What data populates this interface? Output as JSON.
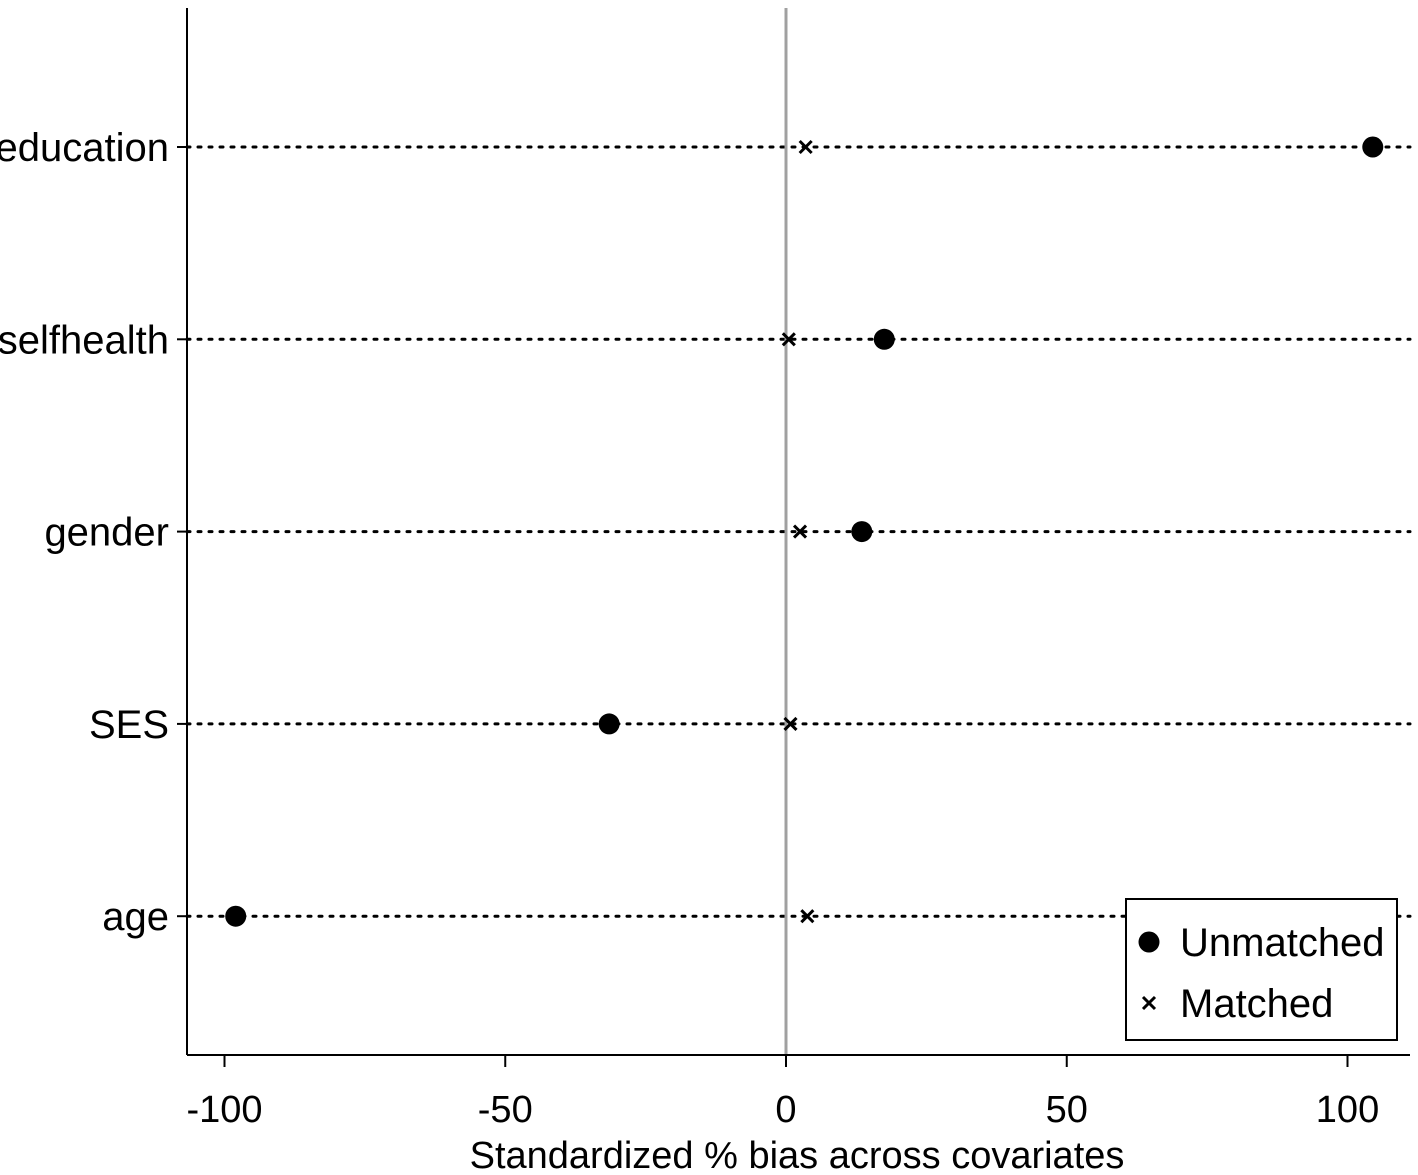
{
  "chart_data": {
    "type": "scatter",
    "title": "",
    "xlabel": "Standardized % bias across covariates",
    "ylabel": "",
    "xlim": [
      -105,
      111
    ],
    "x_ticks": [
      -100,
      -50,
      0,
      50,
      100
    ],
    "x_tick_labels": [
      "-100",
      "-50",
      "0",
      "50",
      "100"
    ],
    "reference_line_x": 0,
    "grid": "dotted horizontal guide per category",
    "categories": [
      "education",
      "selfhealth",
      "gender",
      "SES",
      "age"
    ],
    "series": [
      {
        "name": "Unmatched",
        "marker": "filled-circle",
        "values": [
          104.5,
          17.5,
          13.5,
          -31.5,
          -98
        ]
      },
      {
        "name": "Matched",
        "marker": "x-cross",
        "values": [
          3.5,
          0.5,
          2.5,
          0.8,
          3.8
        ]
      }
    ],
    "legend": {
      "placement": "bottom-right",
      "items": [
        "Unmatched",
        "Matched"
      ]
    },
    "colors": {
      "marker": "#000000",
      "reference_line": "#a0a0a0",
      "axis": "#000000"
    }
  }
}
